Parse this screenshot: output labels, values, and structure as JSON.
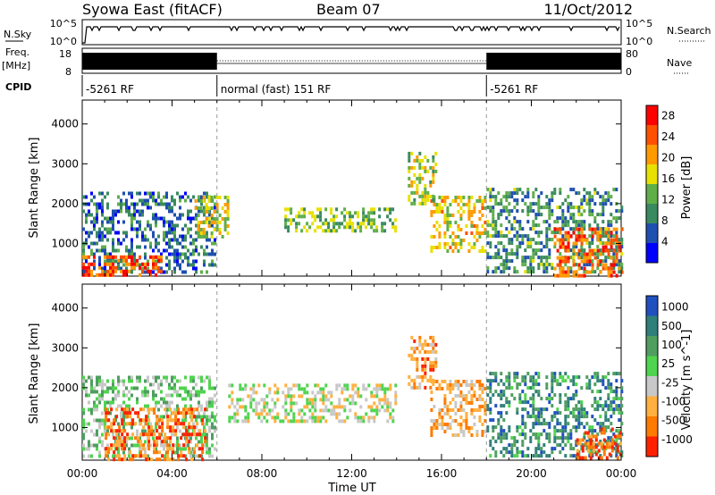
{
  "header": {
    "station": "Syowa East (fitACF)",
    "beam": "Beam 07",
    "date": "11/Oct/2012"
  },
  "status_panels": {
    "nsky_label": "N.Sky",
    "nsky_ticks": [
      "10^5",
      "10^0"
    ],
    "nsearch_label": "N.Search",
    "nsearch_ticks": [
      "10^5",
      "10^0"
    ],
    "freq_label": "Freq.",
    "freq_unit": "[MHz]",
    "freq_ticks": [
      "18",
      "8"
    ],
    "nave_label": "Nave",
    "nave_ticks": [
      "80",
      "0"
    ],
    "cpid_label": "CPID",
    "cpid_segments": [
      {
        "label": "-5261 RF",
        "start_hour": 0
      },
      {
        "label": "normal (fast) 151 RF",
        "start_hour": 6
      },
      {
        "label": "-5261 RF",
        "start_hour": 18
      }
    ]
  },
  "colors": {
    "power_scale": [
      "#0000ff",
      "#1f4fb0",
      "#3a8a5f",
      "#5fae4a",
      "#e8e000",
      "#ff9a00",
      "#ff5000",
      "#ff0000"
    ],
    "velocity_scale": [
      "#2050c0",
      "#2f7f7a",
      "#4f9e60",
      "#4fd44f",
      "#c8c8c8",
      "#ffb040",
      "#ff7a00",
      "#ff2000"
    ]
  },
  "chart_data": [
    {
      "type": "heatmap",
      "panel": "power",
      "xlabel": "",
      "ylabel": "Slant Range [km]",
      "xlim": [
        0,
        24
      ],
      "ylim": [
        180,
        4600
      ],
      "y_ticks": [
        "1000",
        "2000",
        "3000",
        "4000"
      ],
      "colorbar": {
        "label": "Power [dB]",
        "ticks": [
          "4",
          "8",
          "12",
          "16",
          "20",
          "24",
          "28"
        ],
        "range": [
          0,
          30
        ]
      },
      "regions": [
        {
          "x": [
            0.0,
            5.9
          ],
          "y": [
            300,
            2300
          ],
          "level": 0.25
        },
        {
          "x": [
            0.0,
            3.5
          ],
          "y": [
            200,
            700
          ],
          "level": 0.85
        },
        {
          "x": [
            5.0,
            6.5
          ],
          "y": [
            1200,
            2200
          ],
          "level": 0.55
        },
        {
          "x": [
            9.0,
            14.0
          ],
          "y": [
            1300,
            1900
          ],
          "level": 0.45
        },
        {
          "x": [
            15.5,
            17.9
          ],
          "y": [
            800,
            2200
          ],
          "level": 0.6
        },
        {
          "x": [
            18.0,
            24.0
          ],
          "y": [
            300,
            2400
          ],
          "level": 0.35
        },
        {
          "x": [
            21.0,
            24.0
          ],
          "y": [
            200,
            1400
          ],
          "level": 0.8
        },
        {
          "x": [
            14.5,
            15.8
          ],
          "y": [
            2000,
            3300
          ],
          "level": 0.5
        }
      ]
    },
    {
      "type": "heatmap",
      "panel": "velocity",
      "xlabel": "Time UT",
      "ylabel": "Slant Range [km]",
      "xlim": [
        0,
        24
      ],
      "ylim": [
        180,
        4600
      ],
      "x_ticks": [
        "00:00",
        "04:00",
        "08:00",
        "12:00",
        "16:00",
        "20:00",
        "00:00"
      ],
      "y_ticks": [
        "1000",
        "2000",
        "3000",
        "4000"
      ],
      "colorbar": {
        "label": "Velocity [m s^-1]",
        "ticks": [
          "1000",
          "500",
          "100",
          "25",
          "-25",
          "-100",
          "-500",
          "-1000"
        ],
        "range": [
          -1000,
          1000
        ]
      },
      "regions": [
        {
          "x": [
            0.0,
            5.9
          ],
          "y": [
            300,
            2300
          ],
          "level": 0.45
        },
        {
          "x": [
            1.0,
            5.5
          ],
          "y": [
            200,
            1500
          ],
          "level": 0.8
        },
        {
          "x": [
            6.5,
            14.0
          ],
          "y": [
            1200,
            2100
          ],
          "level": 0.55
        },
        {
          "x": [
            15.5,
            17.9
          ],
          "y": [
            800,
            2200
          ],
          "level": 0.7
        },
        {
          "x": [
            18.0,
            24.0
          ],
          "y": [
            300,
            2400
          ],
          "level": 0.25
        },
        {
          "x": [
            22.0,
            24.0
          ],
          "y": [
            200,
            1000
          ],
          "level": 0.85
        },
        {
          "x": [
            14.5,
            15.8
          ],
          "y": [
            2000,
            3300
          ],
          "level": 0.75
        }
      ]
    }
  ]
}
